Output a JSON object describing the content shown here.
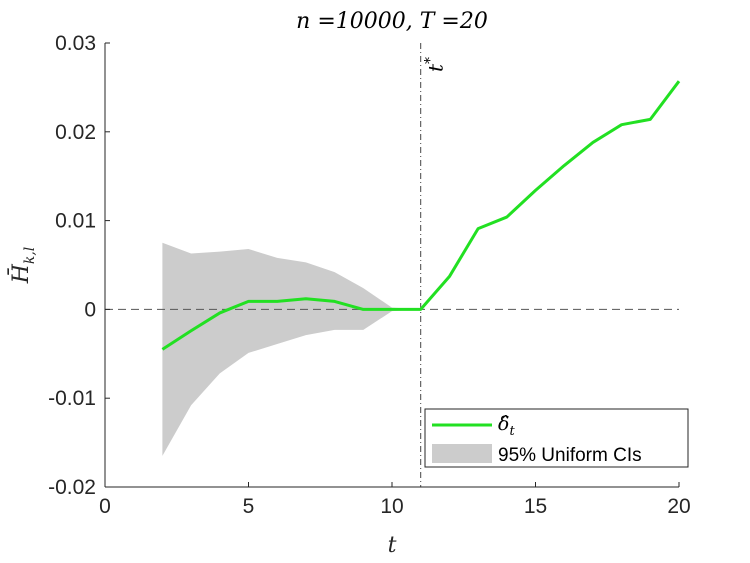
{
  "chart_data": {
    "type": "line",
    "title": "n =10000, T =20",
    "xlabel": "t",
    "ylabel": "H̄k,l",
    "xlim": [
      0,
      20
    ],
    "ylim": [
      -0.02,
      0.03
    ],
    "xticks": [
      0,
      5,
      10,
      15,
      20
    ],
    "xtick_labels": [
      "0",
      "5",
      "10",
      "15",
      "20"
    ],
    "yticks": [
      -0.02,
      -0.01,
      0,
      0.01,
      0.02,
      0.03
    ],
    "ytick_labels": [
      "-0.02",
      "-0.01",
      "0",
      "0.01",
      "0.02",
      "0.03"
    ],
    "grid": false,
    "legend_position": "bottom-right",
    "series": [
      {
        "name": "δ̂t",
        "color": "#22e022",
        "x": [
          2,
          3,
          4,
          5,
          6,
          7,
          8,
          9,
          10,
          11,
          12,
          13,
          14,
          15,
          16,
          17,
          18,
          19,
          20
        ],
        "y": [
          -0.0045,
          -0.0024,
          -0.0004,
          0.0009,
          0.0009,
          0.0012,
          0.0009,
          0.0,
          0.0,
          0.0,
          0.0037,
          0.0091,
          0.0104,
          0.0134,
          0.0162,
          0.0188,
          0.0208,
          0.0214,
          0.0257
        ]
      }
    ],
    "band": {
      "name": "95% Uniform CIs",
      "color": "#cccccc",
      "x": [
        2,
        3,
        4,
        5,
        6,
        7,
        8,
        9,
        10,
        11
      ],
      "upper": [
        0.0075,
        0.0063,
        0.0065,
        0.0068,
        0.0058,
        0.0053,
        0.0042,
        0.0024,
        0.0002,
        0.0
      ],
      "lower": [
        -0.0165,
        -0.0108,
        -0.0072,
        -0.0049,
        -0.0039,
        -0.0029,
        -0.0023,
        -0.0023,
        -0.0002,
        0.0
      ]
    },
    "reference_lines": {
      "horizontal_y": 0,
      "vertical_x": 11,
      "vertical_label": "t*"
    }
  }
}
